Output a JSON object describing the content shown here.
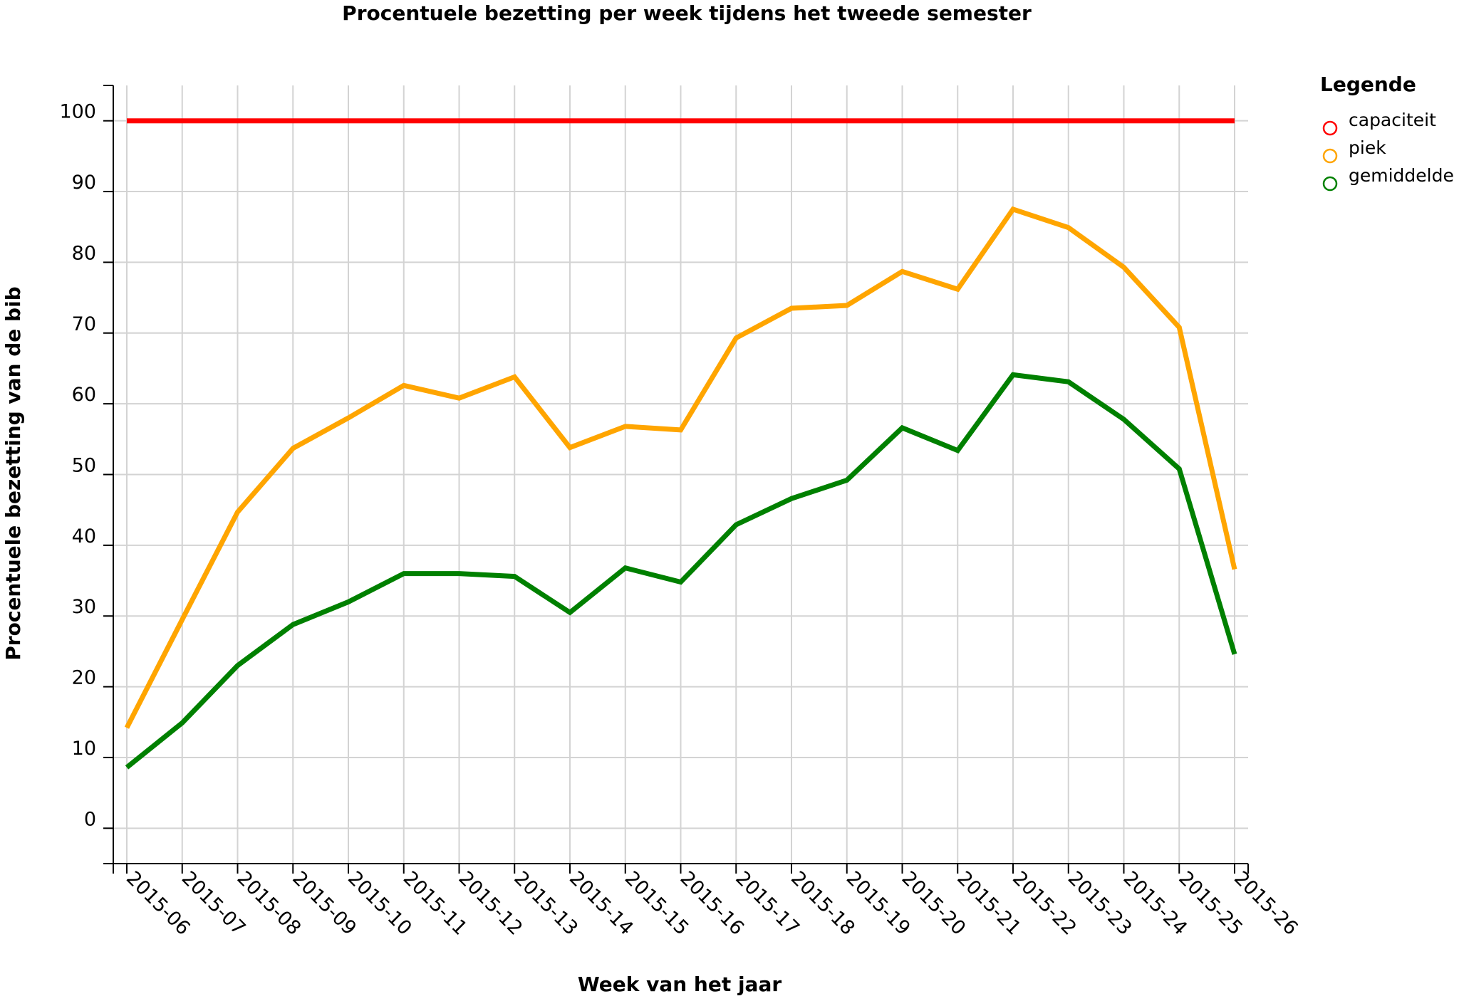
{
  "chart_data": {
    "type": "line",
    "title": "Procentuele bezetting per week tijdens het tweede semester",
    "xlabel": "Week van het jaar",
    "ylabel": "Procentuele bezetting van de bib",
    "categories": [
      "2015-06",
      "2015-07",
      "2015-08",
      "2015-09",
      "2015-10",
      "2015-11",
      "2015-12",
      "2015-13",
      "2015-14",
      "2015-15",
      "2015-16",
      "2015-17",
      "2015-18",
      "2015-19",
      "2015-20",
      "2015-21",
      "2015-22",
      "2015-23",
      "2015-24",
      "2015-25",
      "2015-26"
    ],
    "ylim": [
      -5,
      105
    ],
    "yticks": [
      0,
      10,
      20,
      30,
      40,
      50,
      60,
      70,
      80,
      90,
      100
    ],
    "grid": true,
    "legend": {
      "title": "Legende",
      "placement": "top-right outside"
    },
    "series": [
      {
        "name": "capaciteit",
        "color": "#ff0000",
        "values": [
          100,
          100,
          100,
          100,
          100,
          100,
          100,
          100,
          100,
          100,
          100,
          100,
          100,
          100,
          100,
          100,
          100,
          100,
          100,
          100,
          100
        ]
      },
      {
        "name": "piek",
        "color": "#ffa500",
        "values": [
          14.2,
          29.5,
          44.7,
          53.7,
          58.0,
          62.6,
          60.8,
          63.8,
          53.8,
          56.8,
          56.3,
          69.3,
          73.5,
          73.9,
          78.7,
          76.2,
          87.5,
          84.9,
          79.3,
          70.8,
          36.6
        ]
      },
      {
        "name": "gemiddelde",
        "color": "#008000",
        "values": [
          8.6,
          14.9,
          23.0,
          28.8,
          32.0,
          36.0,
          36.0,
          35.6,
          30.5,
          36.8,
          34.8,
          42.9,
          46.6,
          49.2,
          56.6,
          53.4,
          64.1,
          63.1,
          57.8,
          50.8,
          24.6
        ]
      }
    ]
  }
}
